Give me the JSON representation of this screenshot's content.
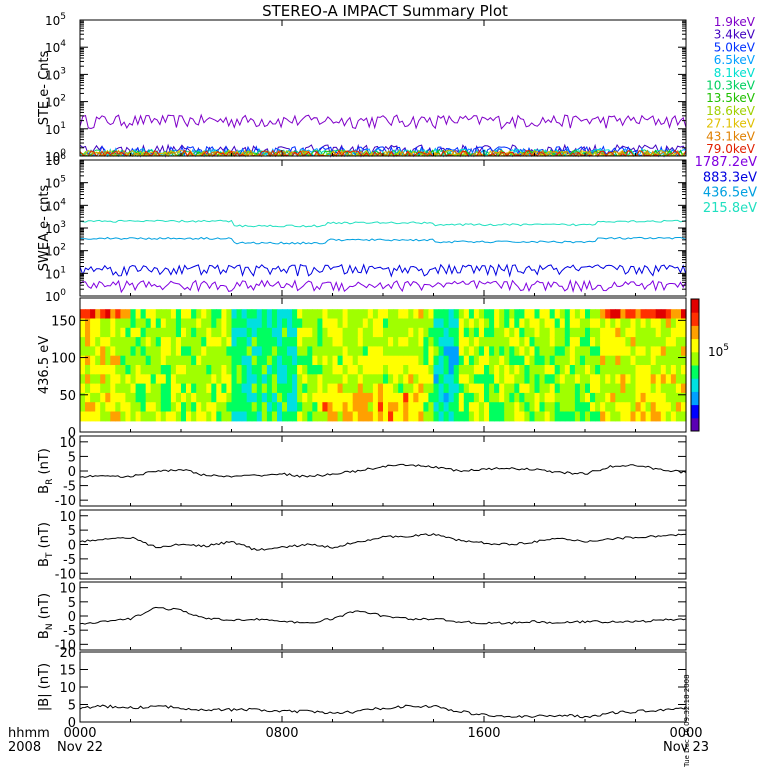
{
  "title": "STEREO-A IMPACT Summary Plot",
  "x_axis": {
    "row1_label": "hhmm",
    "row2_label": "2008",
    "ticks": [
      {
        "hhmm": "0000",
        "date": "Nov 22"
      },
      {
        "hhmm": "0800",
        "date": ""
      },
      {
        "hhmm": "1600",
        "date": ""
      },
      {
        "hhmm": "0000",
        "date": "Nov 23"
      }
    ]
  },
  "side_stamp": "Tue Dec 16 09:32:18 2008",
  "colorbar": {
    "label": "10",
    "exp": "5",
    "colors": [
      "#5a00b4",
      "#0000ff",
      "#00a0ff",
      "#00e0e0",
      "#00ff60",
      "#a0ff00",
      "#ffff00",
      "#ffa000",
      "#ff3000",
      "#e00000"
    ]
  },
  "chart_data": [
    {
      "type": "line",
      "panel": "ste",
      "ylabel": "STE e- Cnts",
      "yscale": "log",
      "ylim": [
        1,
        100000
      ],
      "ytick_exps": [
        "0",
        "1",
        "2",
        "3",
        "4",
        "5"
      ],
      "x": [
        0,
        24
      ],
      "series": [
        {
          "name": "1.9keV",
          "color": "#8000c8",
          "level": 20
        },
        {
          "name": "3.4keV",
          "color": "#4000c0",
          "level": 1.6
        },
        {
          "name": "5.0keV",
          "color": "#0030ff",
          "level": 1.4
        },
        {
          "name": "6.5keV",
          "color": "#00a0ff",
          "level": 1.2
        },
        {
          "name": "8.1keV",
          "color": "#00e0d0",
          "level": 1.1
        },
        {
          "name": "10.3keV",
          "color": "#00d060",
          "level": 1.05
        },
        {
          "name": "13.5keV",
          "color": "#20c000",
          "level": 1.0
        },
        {
          "name": "18.6keV",
          "color": "#a0d000",
          "level": 1.0
        },
        {
          "name": "27.1keV",
          "color": "#e0c000",
          "level": 1.0
        },
        {
          "name": "43.1keV",
          "color": "#e08000",
          "level": 1.0
        },
        {
          "name": "79.0keV",
          "color": "#e02000",
          "level": 1.0
        }
      ]
    },
    {
      "type": "line",
      "panel": "swea",
      "ylabel": "SWEA e- cnts",
      "yscale": "log",
      "ylim": [
        1,
        1000000
      ],
      "ytick_exps": [
        "0",
        "1",
        "2",
        "3",
        "4",
        "5",
        "6"
      ],
      "series": [
        {
          "name": "1787.2eV",
          "color": "#8000e0",
          "level": 3
        },
        {
          "name": "883.3eV",
          "color": "#0000e0",
          "level": 15
        },
        {
          "name": "436.5eV",
          "color": "#00a0e0",
          "level": 350
        },
        {
          "name": "215.8eV",
          "color": "#20e0c0",
          "level": 2000
        }
      ]
    },
    {
      "type": "heatmap",
      "panel": "pad",
      "ylabel": "436.5 eV",
      "ylim": [
        0,
        180
      ],
      "yticks": [
        "0",
        "50",
        "100",
        "150"
      ]
    },
    {
      "type": "line",
      "panel": "br",
      "ylabel_main": "B",
      "ylabel_sub": "R",
      "ylabel_unit": " (nT)",
      "ylim": [
        -12,
        12
      ],
      "yticks": [
        "-10",
        "-5",
        "0",
        "5",
        "10"
      ],
      "x": [
        0,
        1,
        2,
        3,
        4,
        5,
        6,
        7,
        8,
        9,
        10,
        11,
        12,
        13,
        14,
        15,
        16,
        17,
        18,
        19,
        20,
        21,
        22,
        23,
        24
      ],
      "y": [
        -2,
        -1.5,
        -2,
        0,
        0.5,
        -1.5,
        -2,
        -1.5,
        -1,
        -2,
        -1,
        0,
        1.5,
        2,
        1.5,
        0,
        0.5,
        1,
        0.5,
        -0.5,
        -1,
        1.5,
        2,
        0.5,
        -0.5
      ]
    },
    {
      "type": "line",
      "panel": "bt",
      "ylabel_main": "B",
      "ylabel_sub": "T",
      "ylabel_unit": " (nT)",
      "ylim": [
        -12,
        12
      ],
      "yticks": [
        "-10",
        "-5",
        "0",
        "5",
        "10"
      ],
      "x": [
        0,
        1,
        2,
        3,
        4,
        5,
        6,
        7,
        8,
        9,
        10,
        11,
        12,
        13,
        14,
        15,
        16,
        17,
        18,
        19,
        20,
        21,
        22,
        23,
        24
      ],
      "y": [
        1,
        2,
        2.5,
        -1,
        0,
        -0.5,
        1,
        -2,
        -1,
        0,
        -1,
        1,
        2.5,
        3,
        3.5,
        1.5,
        0.5,
        0,
        1,
        2,
        1,
        2,
        2.5,
        3,
        3.5
      ]
    },
    {
      "type": "line",
      "panel": "bn",
      "ylabel_main": "B",
      "ylabel_sub": "N",
      "ylabel_unit": " (nT)",
      "ylim": [
        -12,
        12
      ],
      "yticks": [
        "-10",
        "-5",
        "0",
        "5",
        "10"
      ],
      "x": [
        0,
        1,
        2,
        3,
        4,
        5,
        6,
        7,
        8,
        9,
        10,
        11,
        12,
        13,
        14,
        15,
        16,
        17,
        18,
        19,
        20,
        21,
        22,
        23,
        24
      ],
      "y": [
        -3,
        -2,
        -1,
        3,
        2,
        -1,
        -1.5,
        -1,
        -2,
        -2.5,
        -1,
        2,
        0,
        -1,
        -1,
        -2,
        -2.5,
        -2.5,
        -2,
        -2.5,
        -2,
        -2,
        -2,
        -1.5,
        -1
      ]
    },
    {
      "type": "line",
      "panel": "bmag",
      "ylabel_main": "|B|",
      "ylabel_sub": "",
      "ylabel_unit": " (nT)",
      "ylim": [
        0,
        20
      ],
      "yticks": [
        "0",
        "5",
        "10",
        "15",
        "20"
      ],
      "x": [
        0,
        1,
        2,
        3,
        4,
        5,
        6,
        7,
        8,
        9,
        10,
        11,
        12,
        13,
        14,
        15,
        16,
        17,
        18,
        19,
        20,
        21,
        22,
        23,
        24
      ],
      "y": [
        4,
        4.5,
        4,
        4.5,
        4,
        3.5,
        3.5,
        3.5,
        3,
        3,
        2.5,
        3,
        4,
        4.5,
        4.5,
        3,
        2,
        1.5,
        1.5,
        2,
        1.5,
        2.5,
        3,
        3.5,
        4
      ]
    }
  ]
}
